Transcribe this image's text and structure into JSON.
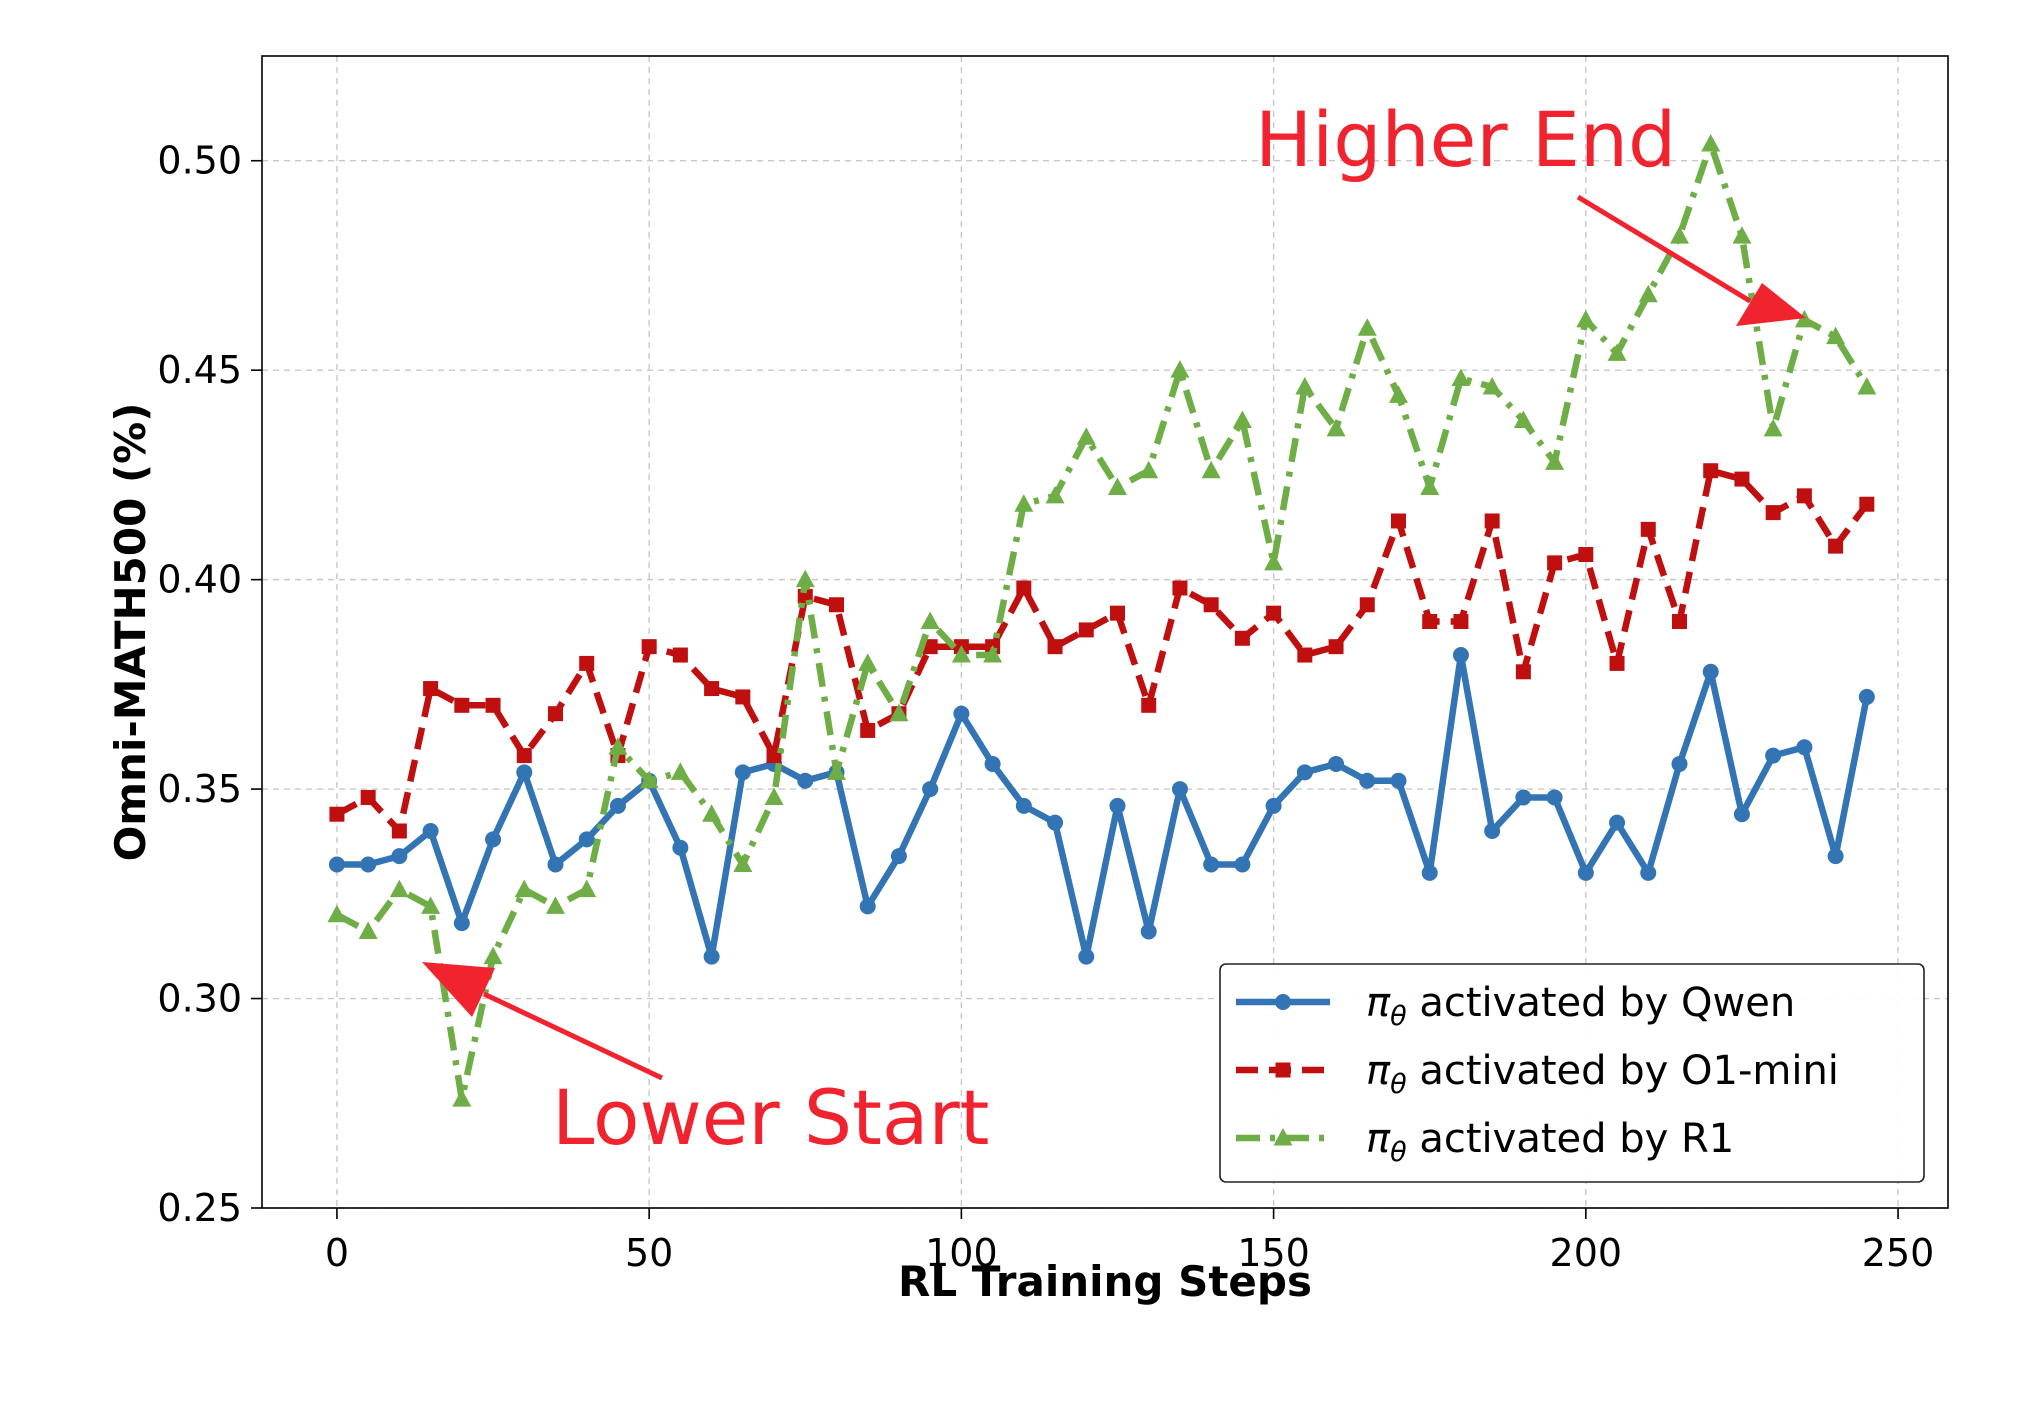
{
  "chart_data": {
    "type": "line",
    "xlabel": "RL Training Steps",
    "ylabel": "Omni-MATH500 (%)",
    "xlim": [
      -12,
      258
    ],
    "ylim": [
      0.25,
      0.525
    ],
    "xticks": [
      0,
      50,
      100,
      150,
      200,
      250
    ],
    "yticks": [
      0.25,
      0.3,
      0.35,
      0.4,
      0.45,
      0.5
    ],
    "grid": true,
    "legend_position": "lower-right",
    "x": [
      0,
      5,
      10,
      15,
      20,
      25,
      30,
      35,
      40,
      45,
      50,
      55,
      60,
      65,
      70,
      75,
      80,
      85,
      90,
      95,
      100,
      105,
      110,
      115,
      120,
      125,
      130,
      135,
      140,
      145,
      150,
      155,
      160,
      165,
      170,
      175,
      180,
      185,
      190,
      195,
      200,
      205,
      210,
      215,
      220,
      225,
      230,
      235,
      240,
      245
    ],
    "series": [
      {
        "name": "activated by Qwen",
        "color": "#3274b4",
        "dash": "solid",
        "marker": "circle",
        "values": [
          0.332,
          0.332,
          0.334,
          0.34,
          0.318,
          0.338,
          0.354,
          0.332,
          0.338,
          0.346,
          0.352,
          0.336,
          0.31,
          0.354,
          0.356,
          0.352,
          0.354,
          0.322,
          0.334,
          0.35,
          0.368,
          0.356,
          0.346,
          0.342,
          0.31,
          0.346,
          0.316,
          0.35,
          0.332,
          0.332,
          0.346,
          0.354,
          0.356,
          0.352,
          0.352,
          0.33,
          0.382,
          0.34,
          0.348,
          0.348,
          0.33,
          0.342,
          0.33,
          0.356,
          0.378,
          0.344,
          0.358,
          0.36,
          0.334,
          0.372
        ]
      },
      {
        "name": "activated by O1-mini",
        "color": "#c00f0f",
        "dash": "dashed",
        "marker": "square",
        "values": [
          0.344,
          0.348,
          0.34,
          0.374,
          0.37,
          0.37,
          0.358,
          0.368,
          0.38,
          0.358,
          0.384,
          0.382,
          0.374,
          0.372,
          0.358,
          0.396,
          0.394,
          0.364,
          0.368,
          0.384,
          0.384,
          0.384,
          0.398,
          0.384,
          0.388,
          0.392,
          0.37,
          0.398,
          0.394,
          0.386,
          0.392,
          0.382,
          0.384,
          0.394,
          0.414,
          0.39,
          0.39,
          0.414,
          0.378,
          0.404,
          0.406,
          0.38,
          0.412,
          0.39,
          0.426,
          0.424,
          0.416,
          0.42,
          0.408,
          0.418
        ]
      },
      {
        "name": "activated by R1",
        "color": "#6fae46",
        "dash": "dashdot",
        "marker": "triangle",
        "values": [
          0.32,
          0.316,
          0.326,
          0.322,
          0.276,
          0.31,
          0.326,
          0.322,
          0.326,
          0.36,
          0.352,
          0.354,
          0.344,
          0.332,
          0.348,
          0.4,
          0.354,
          0.38,
          0.368,
          0.39,
          0.382,
          0.382,
          0.418,
          0.42,
          0.434,
          0.422,
          0.426,
          0.45,
          0.426,
          0.438,
          0.404,
          0.446,
          0.436,
          0.46,
          0.444,
          0.422,
          0.448,
          0.446,
          0.438,
          0.428,
          0.462,
          0.454,
          0.468,
          0.482,
          0.504,
          0.482,
          0.436,
          0.462,
          0.458,
          0.446
        ]
      }
    ],
    "legend_prefix": "π",
    "legend_subscript": "θ",
    "annotations": [
      {
        "text": "Higher End",
        "target": [
          233,
          0.462
        ]
      },
      {
        "text": "Lower  Start",
        "target": [
          13,
          0.304
        ]
      }
    ]
  }
}
